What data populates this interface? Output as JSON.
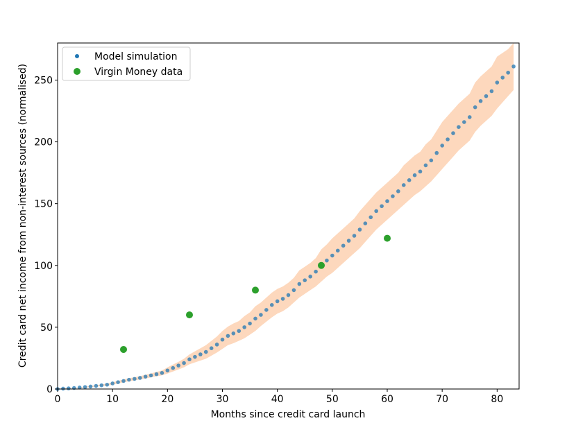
{
  "chart_data": {
    "type": "scatter",
    "xlabel": "Months since credit card launch",
    "ylabel": "Credit card net income from non-interest sources (normalised)",
    "xlim": [
      0,
      84
    ],
    "ylim": [
      0,
      280
    ],
    "xticks": [
      0,
      10,
      20,
      30,
      40,
      50,
      60,
      70,
      80
    ],
    "yticks": [
      0,
      50,
      100,
      150,
      200,
      250
    ],
    "grid": false,
    "legend_position": "upper-left",
    "series": [
      {
        "name": "Model simulation",
        "color": "#1f77b4",
        "band_color": "#fdd8bd",
        "x": [
          0,
          1,
          2,
          3,
          4,
          5,
          6,
          7,
          8,
          9,
          10,
          11,
          12,
          13,
          14,
          15,
          16,
          17,
          18,
          19,
          20,
          21,
          22,
          23,
          24,
          25,
          26,
          27,
          28,
          29,
          30,
          31,
          32,
          33,
          34,
          35,
          36,
          37,
          38,
          39,
          40,
          41,
          42,
          43,
          44,
          45,
          46,
          47,
          48,
          49,
          50,
          51,
          52,
          53,
          54,
          55,
          56,
          57,
          58,
          59,
          60,
          61,
          62,
          63,
          64,
          65,
          66,
          67,
          68,
          69,
          70,
          71,
          72,
          73,
          74,
          75,
          76,
          77,
          78,
          79,
          80,
          81,
          82,
          83
        ],
        "y": [
          0,
          0.3,
          0.5,
          0.8,
          1.2,
          1.6,
          2,
          2.5,
          3,
          3.5,
          4.5,
          5.5,
          6.5,
          7.5,
          8.2,
          9,
          10,
          11,
          12,
          13,
          15,
          17,
          19,
          21,
          24,
          26,
          28,
          30,
          33,
          36,
          40,
          43,
          45,
          47,
          50,
          53,
          57,
          60,
          64,
          68,
          71,
          73,
          76,
          80,
          85,
          88,
          91,
          95,
          100,
          104,
          108,
          112,
          116,
          120,
          124,
          129,
          134,
          139,
          144,
          148,
          152,
          156,
          160,
          165,
          169,
          173,
          176,
          181,
          185,
          191,
          197,
          202,
          207,
          212,
          216,
          220,
          228,
          233,
          237,
          241,
          248,
          252,
          256,
          261
        ],
        "band_lower": [
          0,
          0.2,
          0.4,
          0.6,
          0.9,
          1.2,
          1.5,
          1.9,
          2.3,
          2.7,
          3.5,
          4.5,
          5.4,
          6.3,
          7,
          7.7,
          8.5,
          9.4,
          10.3,
          11.1,
          12.5,
          14.2,
          15.8,
          17.5,
          20,
          21.5,
          23,
          24.5,
          27,
          29.5,
          32.5,
          35.5,
          37,
          39,
          41,
          44,
          47,
          51,
          54.5,
          58,
          61,
          63,
          66,
          70,
          74,
          77,
          80,
          83,
          87,
          91,
          94,
          98,
          102,
          106,
          110,
          114,
          119,
          124,
          129,
          133,
          137,
          141,
          145,
          149,
          153,
          157,
          160,
          164,
          168,
          173,
          178,
          183,
          188,
          193,
          197,
          201,
          208,
          213,
          217,
          221,
          227,
          232,
          237,
          242
        ],
        "band_upper": [
          0,
          0.4,
          0.7,
          1,
          1.5,
          2,
          2.5,
          3.1,
          3.7,
          4.3,
          5.5,
          6.6,
          7.7,
          8.8,
          9.5,
          10.4,
          11.5,
          12.6,
          13.8,
          15,
          17.5,
          19.8,
          22,
          24.5,
          28,
          30.5,
          33,
          35.5,
          39,
          42.5,
          47,
          50.5,
          53,
          55,
          59,
          62,
          67,
          70,
          74,
          78,
          81,
          83,
          86,
          90,
          96,
          99,
          102,
          106,
          113,
          117,
          122,
          126,
          130,
          134,
          138,
          144,
          149,
          154,
          159,
          163,
          167,
          171,
          175,
          181,
          185,
          189,
          192,
          198,
          202,
          209,
          216,
          221,
          226,
          231,
          235,
          239,
          248,
          253,
          257,
          261,
          269,
          272,
          275,
          280
        ]
      },
      {
        "name": "Virgin Money data",
        "color": "#2ca02c",
        "x": [
          12,
          24,
          36,
          48,
          60
        ],
        "y": [
          32,
          60,
          80,
          100,
          122
        ]
      }
    ]
  }
}
